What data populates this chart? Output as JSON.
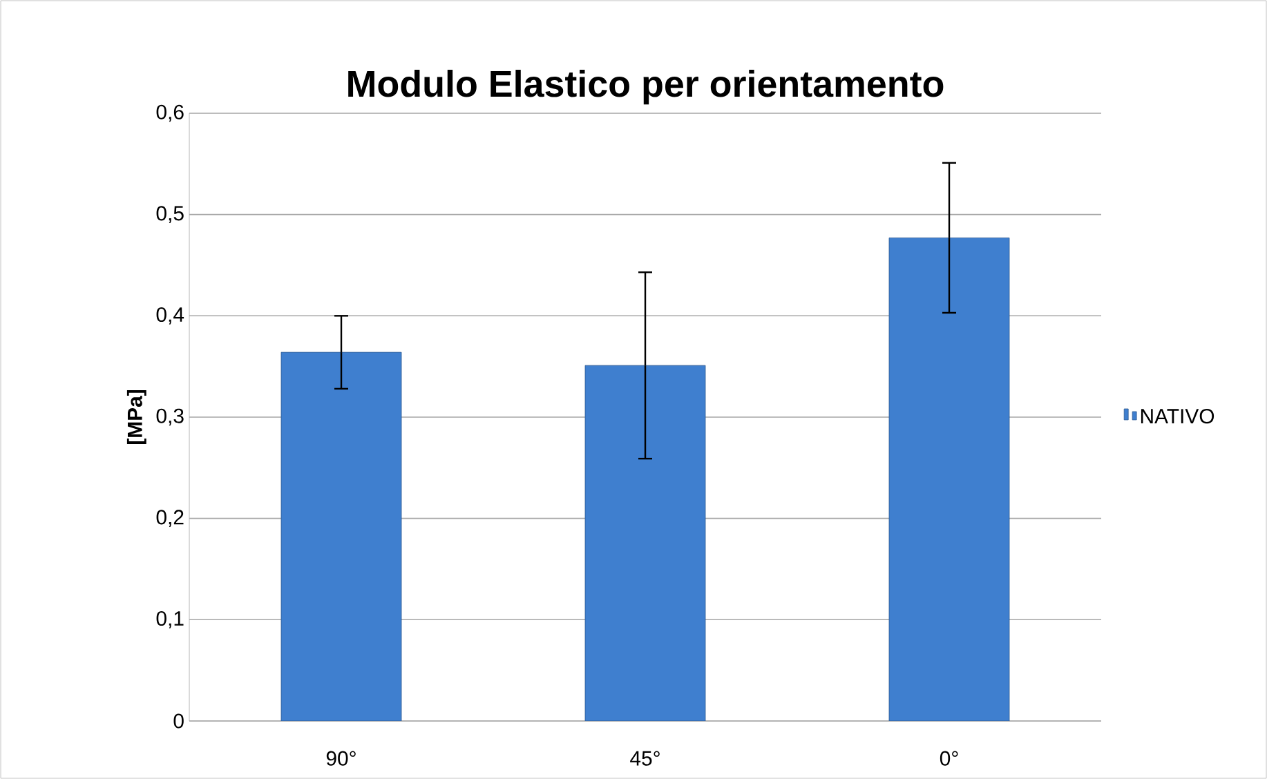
{
  "chart_data": {
    "type": "bar",
    "title": "Modulo Elastico per orientamento",
    "ylabel": "[MPa]",
    "categories": [
      "90°",
      "45°",
      "0°"
    ],
    "series": [
      {
        "name": "NATIVO",
        "color": "#3f7fcf",
        "values": [
          0.364,
          0.351,
          0.477
        ],
        "errors": [
          0.036,
          0.092,
          0.074
        ]
      }
    ],
    "ylim": [
      0,
      0.6
    ],
    "yticks": [
      0,
      {
        "value": 0.1,
        "label": "0,1"
      },
      {
        "value": 0.2,
        "label": "0,2"
      },
      {
        "value": 0.3,
        "label": "0,3"
      },
      {
        "value": 0.4,
        "label": "0,4"
      },
      {
        "value": 0.5,
        "label": "0,5"
      },
      {
        "value": 0.6,
        "label": "0,6"
      }
    ],
    "grid": "y",
    "legend": "right"
  }
}
